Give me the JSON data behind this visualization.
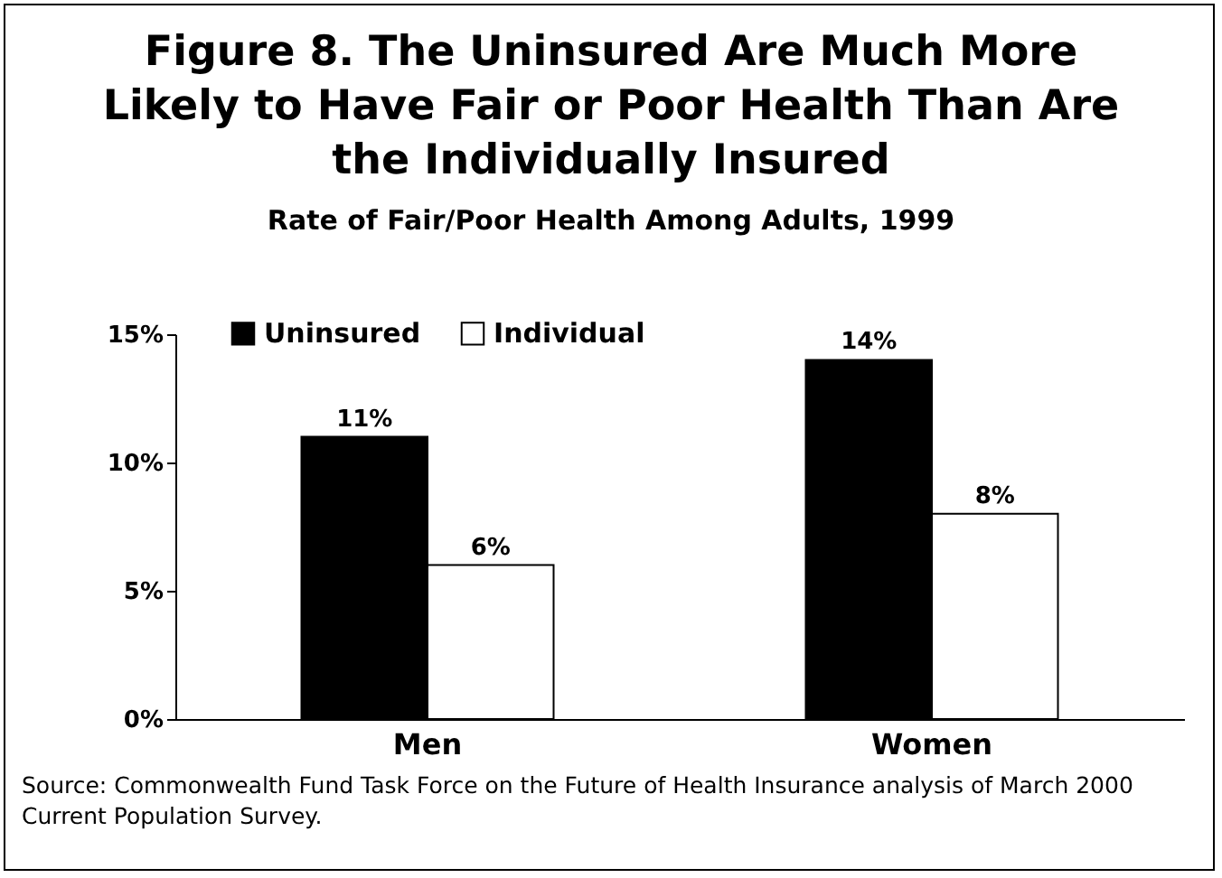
{
  "chart_data": {
    "type": "bar",
    "title": "Figure 8. The Uninsured Are Much More Likely to Have Fair or Poor Health Than Are the Individually Insured",
    "subtitle": "Rate of Fair/Poor Health Among Adults, 1999",
    "categories": [
      "Men",
      "Women"
    ],
    "series": [
      {
        "name": "Uninsured",
        "color": "#000000",
        "values": [
          11,
          14
        ],
        "value_labels": [
          "11%",
          "14%"
        ]
      },
      {
        "name": "Individual",
        "color": "#ffffff",
        "values": [
          6,
          8
        ],
        "value_labels": [
          "6%",
          "8%"
        ]
      }
    ],
    "ylim": [
      0,
      15
    ],
    "yticks": [
      {
        "value": 0,
        "label": "0%"
      },
      {
        "value": 5,
        "label": "5%"
      },
      {
        "value": 10,
        "label": "10%"
      },
      {
        "value": 15,
        "label": "15%"
      }
    ],
    "grid": false,
    "legend": "top left",
    "annotations": [
      "Source: Commonwealth Fund Task Force on the Future of Health Insurance analysis of March 2000 Current Population Survey."
    ]
  }
}
